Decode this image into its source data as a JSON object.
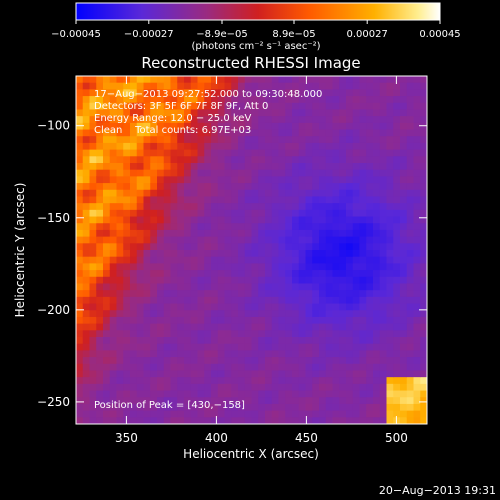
{
  "chart_data": {
    "type": "heatmap",
    "title": "Reconstructed RHESSI Image",
    "xlabel": "Heliocentric X (arcsec)",
    "ylabel": "Heliocentric Y (arcsec)",
    "xlim": [
      322,
      517
    ],
    "ylim": [
      -262,
      -73
    ],
    "x_ticks": [
      350,
      400,
      450,
      500
    ],
    "y_ticks": [
      -100,
      -150,
      -200,
      -250
    ],
    "x_tick_labels": [
      "350",
      "400",
      "450",
      "500"
    ],
    "y_tick_labels": [
      "−100",
      "−150",
      "−200",
      "−250"
    ],
    "colorbar": {
      "range": [
        -0.00045,
        0.00045
      ],
      "tick_values": [
        -0.00045,
        -0.00027,
        -8.9e-05,
        8.9e-05,
        0.00027,
        0.00045
      ],
      "tick_labels": [
        "−0.00045",
        "−0.00027",
        "−8.9e−05",
        "8.9e−05",
        "0.00027",
        "0.00045"
      ],
      "unit_label": "(photons cm⁻² s⁻¹ asec⁻²)",
      "colors": [
        "#0000ff",
        "#6a28d0",
        "#b03050",
        "#e63000",
        "#ff8c00",
        "#ffe070",
        "#ffffff"
      ]
    },
    "annotations": {
      "time_range": "17−Aug−2013 09:27:52.000 to 09:30:48.000",
      "detectors": "Detectors: 3F 5F 6F 7F 8F 9F, Att 0",
      "energy_range": "Energy Range: 12.0 − 25.0 keV",
      "method_counts": "Clean    Total counts: 6.97E+03",
      "peak_position": "Position of Peak = [430,−158]"
    },
    "peak": [
      430,
      -158
    ],
    "grid": false
  },
  "footer": {
    "date": "20−Aug−2013 19:31"
  }
}
